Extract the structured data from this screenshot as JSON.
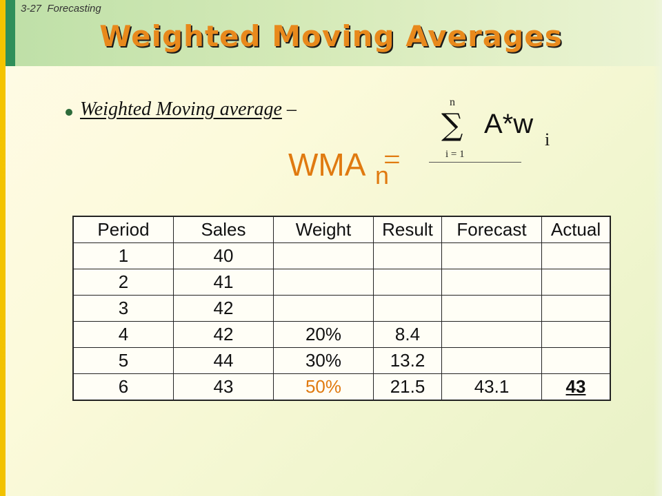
{
  "slide": {
    "number": "3-27",
    "section": "Forecasting",
    "title": "Weighted Moving Averages"
  },
  "bullet": {
    "term": "Weighted Moving average",
    "dash": "–"
  },
  "formula": {
    "lhs": "WMA",
    "lhs_sub": "n",
    "equals": "=",
    "sum_symbol": "∑",
    "sum_upper": "n",
    "sum_lower": "i = 1",
    "sum_body": "A*w",
    "sum_body_sub": "i"
  },
  "table": {
    "headers": [
      "Period",
      "Sales",
      "Weight",
      "Result",
      "Forecast",
      "Actual"
    ],
    "rows": [
      {
        "period": "1",
        "sales": "40",
        "weight": "",
        "result": "",
        "forecast": "",
        "actual": ""
      },
      {
        "period": "2",
        "sales": "41",
        "weight": "",
        "result": "",
        "forecast": "",
        "actual": ""
      },
      {
        "period": "3",
        "sales": "42",
        "weight": "",
        "result": "",
        "forecast": "",
        "actual": ""
      },
      {
        "period": "4",
        "sales": "42",
        "weight": "20%",
        "result": "8.4",
        "forecast": "",
        "actual": ""
      },
      {
        "period": "5",
        "sales": "44",
        "weight": "30%",
        "result": "13.2",
        "forecast": "",
        "actual": ""
      },
      {
        "period": "6",
        "sales": "43",
        "weight": "50%",
        "result": "21.5",
        "forecast": "43.1",
        "actual": "43"
      }
    ]
  },
  "colors": {
    "accent": "#e07a10",
    "title_shadow": "#1c1c1c",
    "bullet": "#2d6b3a"
  }
}
